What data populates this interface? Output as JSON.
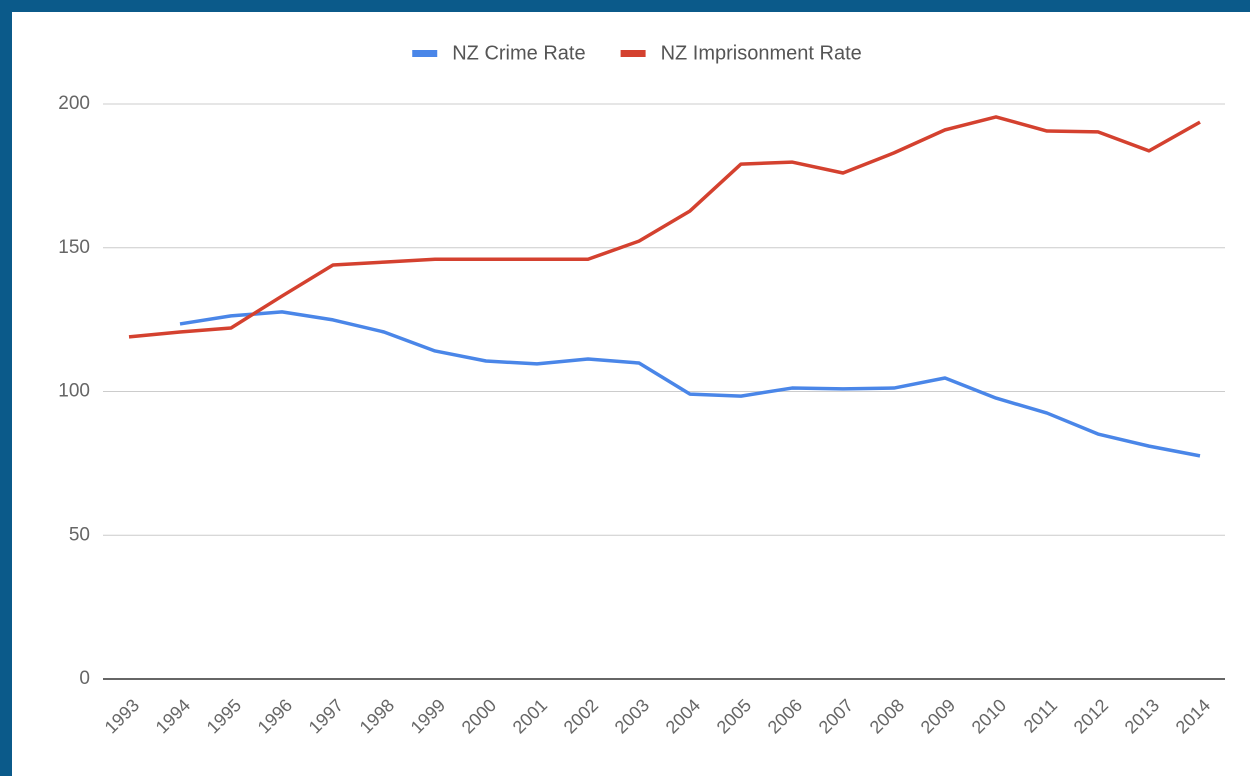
{
  "chart_data": {
    "type": "line",
    "categories": [
      "1993",
      "1994",
      "1995",
      "1996",
      "1997",
      "1998",
      "1999",
      "2000",
      "2001",
      "2002",
      "2003",
      "2004",
      "2005",
      "2006",
      "2007",
      "2008",
      "2009",
      "2010",
      "2011",
      "2012",
      "2013",
      "2014"
    ],
    "series": [
      {
        "name": "NZ Crime Rate",
        "color": "#4a86e8",
        "values": [
          null,
          123.5,
          126.3,
          127.7,
          124.9,
          120.7,
          114.1,
          110.6,
          109.6,
          111.3,
          109.9,
          99.1,
          98.4,
          101.2,
          100.9,
          101.2,
          104.7,
          97.7,
          92.5,
          85.2,
          81,
          77.6
        ]
      },
      {
        "name": "NZ Imprisonment Rate",
        "color": "#d4412f",
        "values": [
          119,
          120.7,
          122.1,
          133.2,
          144,
          145,
          146,
          146,
          146,
          146,
          152.3,
          162.8,
          179.1,
          179.8,
          176,
          183,
          191,
          195.5,
          190.6,
          190.3,
          183.7,
          193.7
        ]
      }
    ],
    "ylim": [
      0,
      200
    ],
    "yticks": [
      0,
      50,
      100,
      150,
      200
    ],
    "grid": true,
    "legend": "top"
  }
}
